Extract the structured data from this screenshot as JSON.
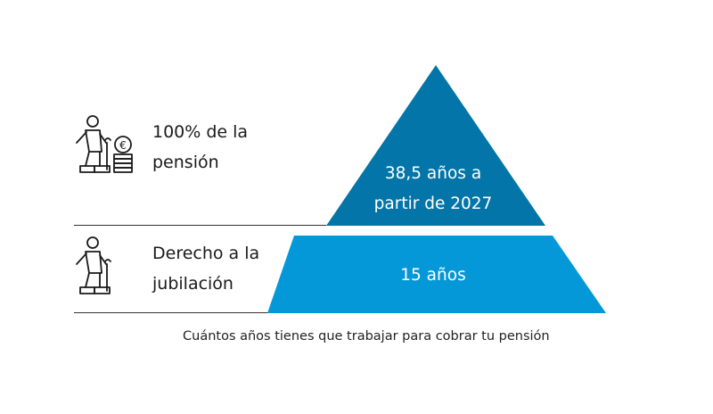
{
  "colors": {
    "top_tier": "#0375a8",
    "bottom_tier": "#0598d8",
    "tier_text": "#ffffff",
    "divider": "#333333",
    "icon_stroke": "#1a1a1a"
  },
  "icons": {
    "top": "elderly-person-with-cane-and-euro-coins-icon",
    "bottom": "elderly-person-with-cane-icon"
  },
  "pyramid": {
    "top_tier": {
      "text_lines": [
        "38,5 años a",
        "partir de 2027"
      ]
    },
    "bottom_tier": {
      "text": "15 años"
    }
  },
  "labels": {
    "top": {
      "lines": [
        "100% de la",
        "pensión"
      ]
    },
    "bottom": {
      "lines": [
        "Derecho a la",
        "jubilación"
      ]
    }
  },
  "caption": "Cuántos años tienes que trabajar para cobrar tu pensión",
  "euro_symbol": "€"
}
